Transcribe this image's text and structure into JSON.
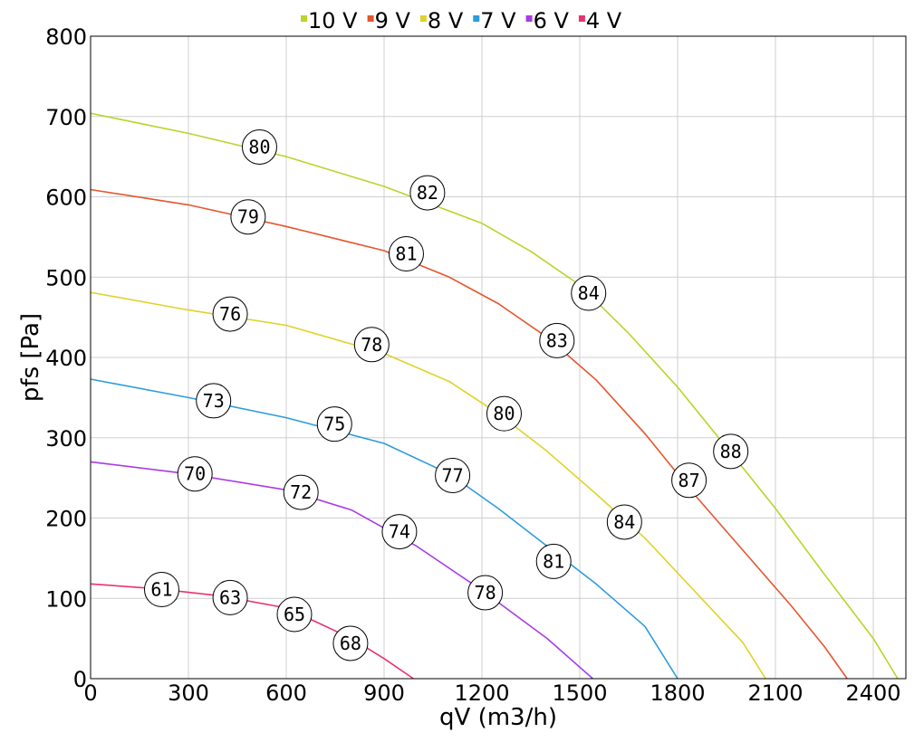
{
  "chart_data": {
    "type": "line",
    "xlabel": "qV (m3/h)",
    "ylabel": "pfs [Pa]",
    "xlim": [
      0,
      2500
    ],
    "ylim": [
      0,
      800
    ],
    "x_ticks": [
      0,
      300,
      600,
      900,
      1200,
      1500,
      1800,
      2100,
      2400
    ],
    "y_ticks": [
      0,
      100,
      200,
      300,
      400,
      500,
      600,
      700,
      800
    ],
    "grid": true,
    "legend_position": "top",
    "series": [
      {
        "name": "10 V",
        "color": "#b5d62c",
        "points": [
          [
            0,
            704
          ],
          [
            300,
            679
          ],
          [
            600,
            650
          ],
          [
            900,
            613
          ],
          [
            1200,
            567
          ],
          [
            1350,
            532
          ],
          [
            1500,
            490
          ],
          [
            1650,
            430
          ],
          [
            1800,
            363
          ],
          [
            1950,
            288
          ],
          [
            2100,
            212
          ],
          [
            2250,
            130
          ],
          [
            2400,
            50
          ],
          [
            2475,
            0
          ]
        ],
        "labels": [
          {
            "text": "80",
            "x": 518,
            "y": 662
          },
          {
            "text": "82",
            "x": 1033,
            "y": 605
          },
          {
            "text": "84",
            "x": 1527,
            "y": 480
          },
          {
            "text": "88",
            "x": 1963,
            "y": 283
          }
        ]
      },
      {
        "name": "9 V",
        "color": "#e4572e",
        "points": [
          [
            0,
            609
          ],
          [
            300,
            590
          ],
          [
            600,
            563
          ],
          [
            900,
            533
          ],
          [
            1100,
            500
          ],
          [
            1250,
            467
          ],
          [
            1400,
            425
          ],
          [
            1550,
            372
          ],
          [
            1700,
            305
          ],
          [
            1850,
            230
          ],
          [
            2000,
            160
          ],
          [
            2150,
            90
          ],
          [
            2250,
            40
          ],
          [
            2320,
            0
          ]
        ],
        "labels": [
          {
            "text": "79",
            "x": 483,
            "y": 575
          },
          {
            "text": "81",
            "x": 968,
            "y": 529
          },
          {
            "text": "83",
            "x": 1430,
            "y": 421
          },
          {
            "text": "87",
            "x": 1835,
            "y": 247
          }
        ]
      },
      {
        "name": "8 V",
        "color": "#e0d22a",
        "points": [
          [
            0,
            481
          ],
          [
            300,
            459
          ],
          [
            600,
            440
          ],
          [
            900,
            405
          ],
          [
            1100,
            370
          ],
          [
            1250,
            330
          ],
          [
            1400,
            283
          ],
          [
            1550,
            230
          ],
          [
            1700,
            175
          ],
          [
            1850,
            110
          ],
          [
            2000,
            45
          ],
          [
            2070,
            0
          ]
        ],
        "labels": [
          {
            "text": "76",
            "x": 428,
            "y": 454
          },
          {
            "text": "78",
            "x": 862,
            "y": 416
          },
          {
            "text": "80",
            "x": 1268,
            "y": 330
          },
          {
            "text": "84",
            "x": 1637,
            "y": 195
          }
        ]
      },
      {
        "name": "7 V",
        "color": "#2d9cdb",
        "points": [
          [
            0,
            373
          ],
          [
            300,
            350
          ],
          [
            600,
            325
          ],
          [
            900,
            293
          ],
          [
            1100,
            255
          ],
          [
            1250,
            212
          ],
          [
            1400,
            165
          ],
          [
            1550,
            118
          ],
          [
            1700,
            65
          ],
          [
            1800,
            0
          ]
        ],
        "labels": [
          {
            "text": "73",
            "x": 377,
            "y": 346
          },
          {
            "text": "75",
            "x": 748,
            "y": 317
          },
          {
            "text": "77",
            "x": 1110,
            "y": 253
          },
          {
            "text": "81",
            "x": 1420,
            "y": 146
          }
        ]
      },
      {
        "name": "6 V",
        "color": "#a93be6",
        "points": [
          [
            0,
            270
          ],
          [
            300,
            255
          ],
          [
            600,
            235
          ],
          [
            800,
            210
          ],
          [
            1000,
            165
          ],
          [
            1200,
            110
          ],
          [
            1400,
            50
          ],
          [
            1540,
            0
          ]
        ],
        "labels": [
          {
            "text": "70",
            "x": 320,
            "y": 255
          },
          {
            "text": "72",
            "x": 645,
            "y": 232
          },
          {
            "text": "74",
            "x": 947,
            "y": 183
          },
          {
            "text": "78",
            "x": 1210,
            "y": 107
          }
        ]
      },
      {
        "name": "4 V",
        "color": "#e8336f",
        "points": [
          [
            0,
            118
          ],
          [
            200,
            112
          ],
          [
            400,
            103
          ],
          [
            600,
            88
          ],
          [
            800,
            50
          ],
          [
            900,
            25
          ],
          [
            990,
            0
          ]
        ],
        "labels": [
          {
            "text": "61",
            "x": 218,
            "y": 111
          },
          {
            "text": "63",
            "x": 428,
            "y": 101
          },
          {
            "text": "65",
            "x": 625,
            "y": 80
          },
          {
            "text": "68",
            "x": 797,
            "y": 44
          }
        ]
      }
    ]
  }
}
